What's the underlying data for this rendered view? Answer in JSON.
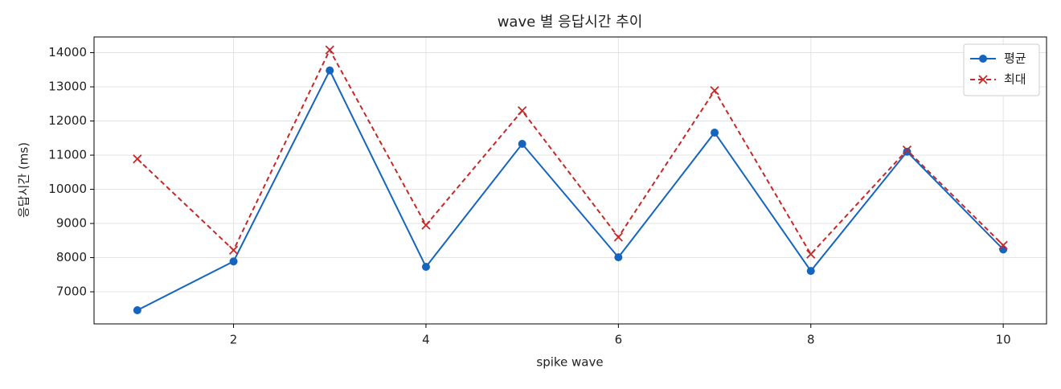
{
  "chart_data": {
    "type": "line",
    "title": "wave 별 응답시간 추이",
    "x_label": "spike wave",
    "y_label": "응답시간 (ms)",
    "x": [
      1,
      2,
      3,
      4,
      5,
      6,
      7,
      8,
      9,
      10
    ],
    "series": [
      {
        "name": "평균",
        "color": "#1565c0",
        "marker": "circle",
        "dash": false,
        "values": [
          6460,
          7890,
          13480,
          7730,
          11330,
          8010,
          11660,
          7610,
          11100,
          8240
        ]
      },
      {
        "name": "최대",
        "color": "#c62828",
        "marker": "x",
        "dash": true,
        "values": [
          10890,
          8220,
          14080,
          8950,
          12300,
          8600,
          12890,
          8100,
          11150,
          8360
        ]
      }
    ],
    "xlim": [
      0.55,
      10.45
    ],
    "xticks": [
      2,
      4,
      6,
      8,
      10
    ],
    "ylim": [
      6060,
      14460
    ],
    "yticks": [
      7000,
      8000,
      9000,
      10000,
      11000,
      12000,
      13000,
      14000
    ],
    "grid": true,
    "legend": "upper right"
  }
}
